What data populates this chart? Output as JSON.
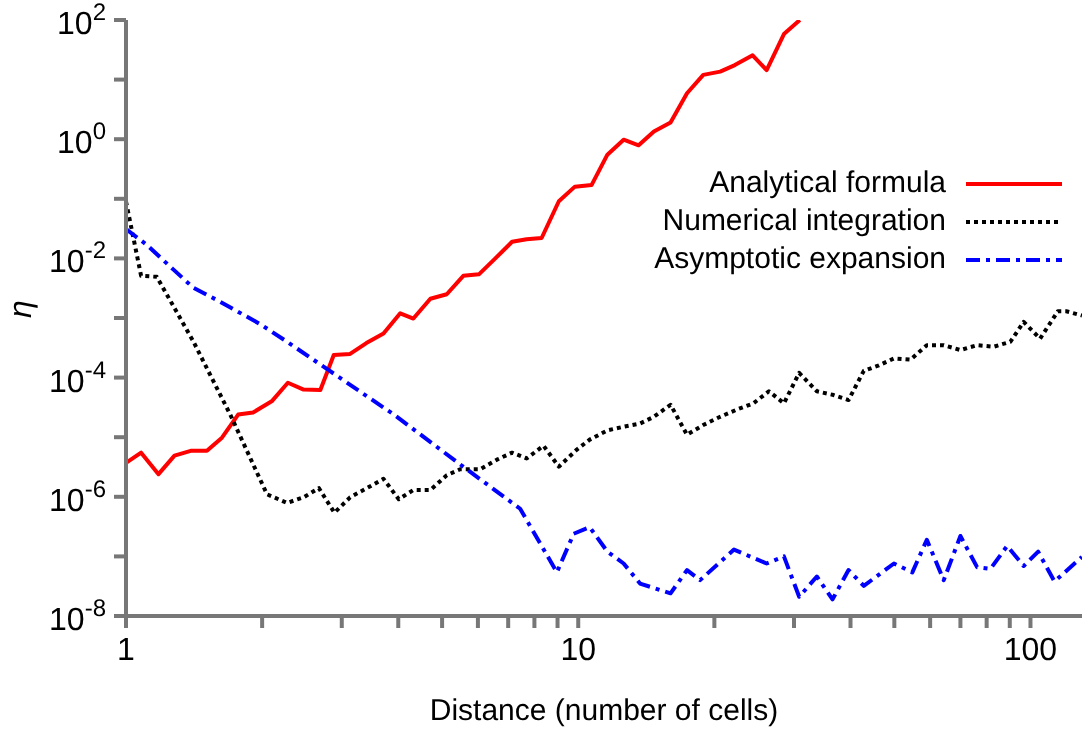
{
  "chart_data": {
    "type": "line",
    "xlabel": "Distance (number of cells)",
    "ylabel": "η",
    "log": "xy",
    "legend": "top right",
    "grid": false,
    "xlim": [
      1,
      130
    ],
    "ylim": [
      1e-08,
      100
    ],
    "xticks": [
      1,
      {
        "value": 2,
        "label": null
      },
      {
        "value": 3,
        "label": null
      },
      {
        "value": 4,
        "label": null
      },
      {
        "value": 5,
        "label": null
      },
      {
        "value": 6,
        "label": null
      },
      {
        "value": 7,
        "label": null
      },
      {
        "value": 8,
        "label": null
      },
      {
        "value": 9,
        "label": null
      },
      10,
      {
        "value": 20,
        "label": null
      },
      {
        "value": 30,
        "label": null
      },
      {
        "value": 40,
        "label": null
      },
      {
        "value": 50,
        "label": null
      },
      {
        "value": 60,
        "label": null
      },
      {
        "value": 70,
        "label": null
      },
      {
        "value": 80,
        "label": null
      },
      {
        "value": 90,
        "label": null
      },
      100
    ],
    "yticks": [
      {
        "value": 1e-08,
        "label": "10$^{-8}$"
      },
      {
        "value": 1e-07,
        "label": null
      },
      {
        "value": 1e-06,
        "label": "10$^{-6}$"
      },
      {
        "value": 1e-05,
        "label": null
      },
      {
        "value": 0.0001,
        "label": "10$^{-4}$"
      },
      {
        "value": 0.001,
        "label": null
      },
      {
        "value": 0.01,
        "label": "10$^{-2}$"
      },
      {
        "value": 0.1,
        "label": null
      },
      {
        "value": 1,
        "label": "10$^{0}$"
      },
      {
        "value": 10,
        "label": null
      },
      {
        "value": 100,
        "label": "10$^{2}$"
      }
    ],
    "series": [
      {
        "name": "Analytical formula",
        "color": "#ff0000",
        "line_style": "solid",
        "x": [
          1,
          1.08,
          1.18,
          1.28,
          1.39,
          1.51,
          1.63,
          1.77,
          1.91,
          2.1,
          2.28,
          2.47,
          2.69,
          2.88,
          3.13,
          3.4,
          3.71,
          4.04,
          4.32,
          4.71,
          5.12,
          5.57,
          6.03,
          6.54,
          7.14,
          7.69,
          8.3,
          9.06,
          9.83,
          10.7,
          11.6,
          12.6,
          13.6,
          14.7,
          16,
          17.4,
          18.9,
          20.6,
          22.2,
          24.3,
          26.1,
          28.5,
          30.9
        ],
        "values": [
          3.7e-06,
          5.5e-06,
          2.4e-06,
          4.9e-06,
          5.9e-06,
          5.9e-06,
          9.8e-06,
          2.4e-05,
          2.6e-05,
          4e-05,
          8.2e-05,
          6.3e-05,
          6.2e-05,
          0.00024,
          0.00025,
          0.00038,
          0.00055,
          0.0012,
          0.00098,
          0.0021,
          0.0025,
          0.0051,
          0.0054,
          0.0098,
          0.019,
          0.021,
          0.022,
          0.091,
          0.16,
          0.17,
          0.55,
          0.98,
          0.79,
          1.35,
          1.9,
          5.9,
          12,
          13.6,
          17.5,
          25.6,
          14.4,
          58,
          100
        ]
      },
      {
        "name": "Numerical integration",
        "color": "#000000",
        "line_style": "dotted",
        "x": [
          1,
          1.08,
          1.17,
          1.41,
          1.7,
          2.05,
          2.27,
          2.47,
          2.67,
          2.89,
          3.13,
          3.41,
          3.71,
          4.01,
          4.32,
          4.71,
          5.12,
          5.48,
          6.07,
          6.61,
          7.14,
          7.69,
          8.38,
          9.06,
          9.93,
          10.6,
          11.6,
          12.6,
          13.7,
          14.7,
          16,
          17.4,
          18.9,
          20.6,
          22.4,
          24.4,
          26.4,
          28.5,
          30.8,
          33.7,
          36.7,
          39.6,
          42.8,
          46.2,
          49.9,
          54.3,
          59,
          64.3,
          70,
          76.2,
          83,
          90.3,
          96.6,
          105,
          115,
          120,
          130
        ],
        "values": [
          0.09,
          0.0051,
          0.0049,
          0.0004,
          2.4e-05,
          1.1e-06,
          7.9e-07,
          9.8e-07,
          1.4e-06,
          5.4e-07,
          9.8e-07,
          1.4e-06,
          2e-06,
          9.1e-07,
          1.3e-06,
          1.3e-06,
          2.3e-06,
          2.9e-06,
          2.9e-06,
          4.2e-06,
          5.5e-06,
          4.4e-06,
          7.2e-06,
          3.2e-06,
          6.2e-06,
          9.1e-06,
          1.3e-05,
          1.5e-05,
          1.7e-05,
          2.2e-05,
          3.5e-05,
          1.1e-05,
          1.6e-05,
          2.2e-05,
          2.9e-05,
          3.7e-05,
          5.9e-05,
          3.7e-05,
          0.00012,
          5.9e-05,
          5.1e-05,
          4.2e-05,
          0.00013,
          0.00016,
          0.00021,
          0.0002,
          0.00035,
          0.00035,
          0.00029,
          0.00035,
          0.00033,
          0.0004,
          0.00086,
          0.00045,
          0.0013,
          0.0013,
          0.0011
        ]
      },
      {
        "name": "Asymptotic expansion",
        "color": "#0000ff",
        "line_style": "dashed",
        "x": [
          1,
          1.11,
          1.27,
          1.41,
          1.61,
          1.98,
          2.27,
          2.78,
          3.91,
          5.48,
          7.44,
          8.97,
          9.77,
          10.6,
          11.6,
          12.6,
          13.7,
          16,
          17.4,
          18.6,
          22.1,
          26.1,
          28.5,
          30.8,
          33.7,
          36.5,
          39.6,
          42.8,
          49.9,
          54.8,
          59,
          64.3,
          70,
          76.2,
          81.6,
          88.8,
          96.6,
          104,
          113,
          130
        ],
        "values": [
          0.031,
          0.017,
          0.0066,
          0.0032,
          0.0019,
          0.00079,
          0.0004,
          0.00014,
          2.4e-05,
          3.5e-06,
          6.3e-07,
          5.4e-08,
          2.4e-07,
          3.1e-07,
          1.2e-07,
          7.6e-08,
          3.5e-08,
          2.4e-08,
          5.9e-08,
          4e-08,
          1.3e-07,
          7.6e-08,
          1e-07,
          2.1e-08,
          4.6e-08,
          1.9e-08,
          5.9e-08,
          3.2e-08,
          7.6e-08,
          5.4e-08,
          1.9e-07,
          4e-08,
          2.2e-07,
          6.6e-08,
          6.2e-08,
          1.5e-07,
          6.9e-08,
          1.2e-07,
          3.8e-08,
          9.8e-08
        ]
      }
    ]
  }
}
